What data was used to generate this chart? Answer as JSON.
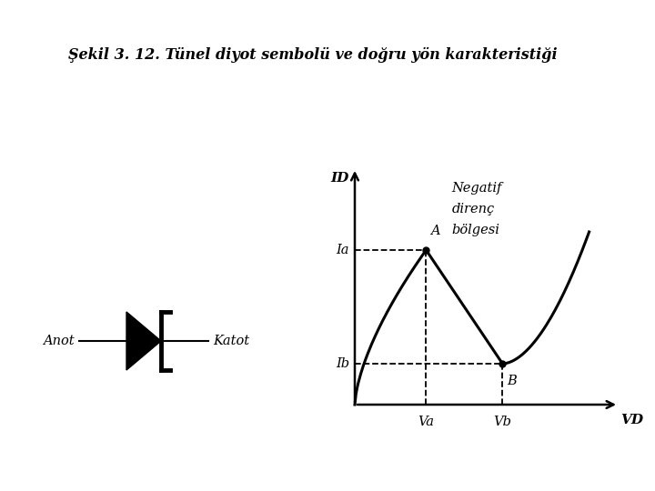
{
  "title": "Şekil 3. 12. Tünel diyot sembolü ve doğru yön karakteristiği",
  "title_fontsize": 11.5,
  "bg_color": "#ffffff",
  "label_ID": "ID",
  "label_VD": "VD",
  "label_Ia": "Ia",
  "label_Ib": "Ib",
  "label_Va": "Va",
  "label_Vb": "Vb",
  "label_A": "A",
  "label_B": "B",
  "label_neg": "Negatif\ndirenç\nbölgesi",
  "label_Anot": "Anot",
  "label_Katot": "Katot",
  "Va": 0.28,
  "Vb": 0.58,
  "Ia": 0.68,
  "Ib": 0.18
}
